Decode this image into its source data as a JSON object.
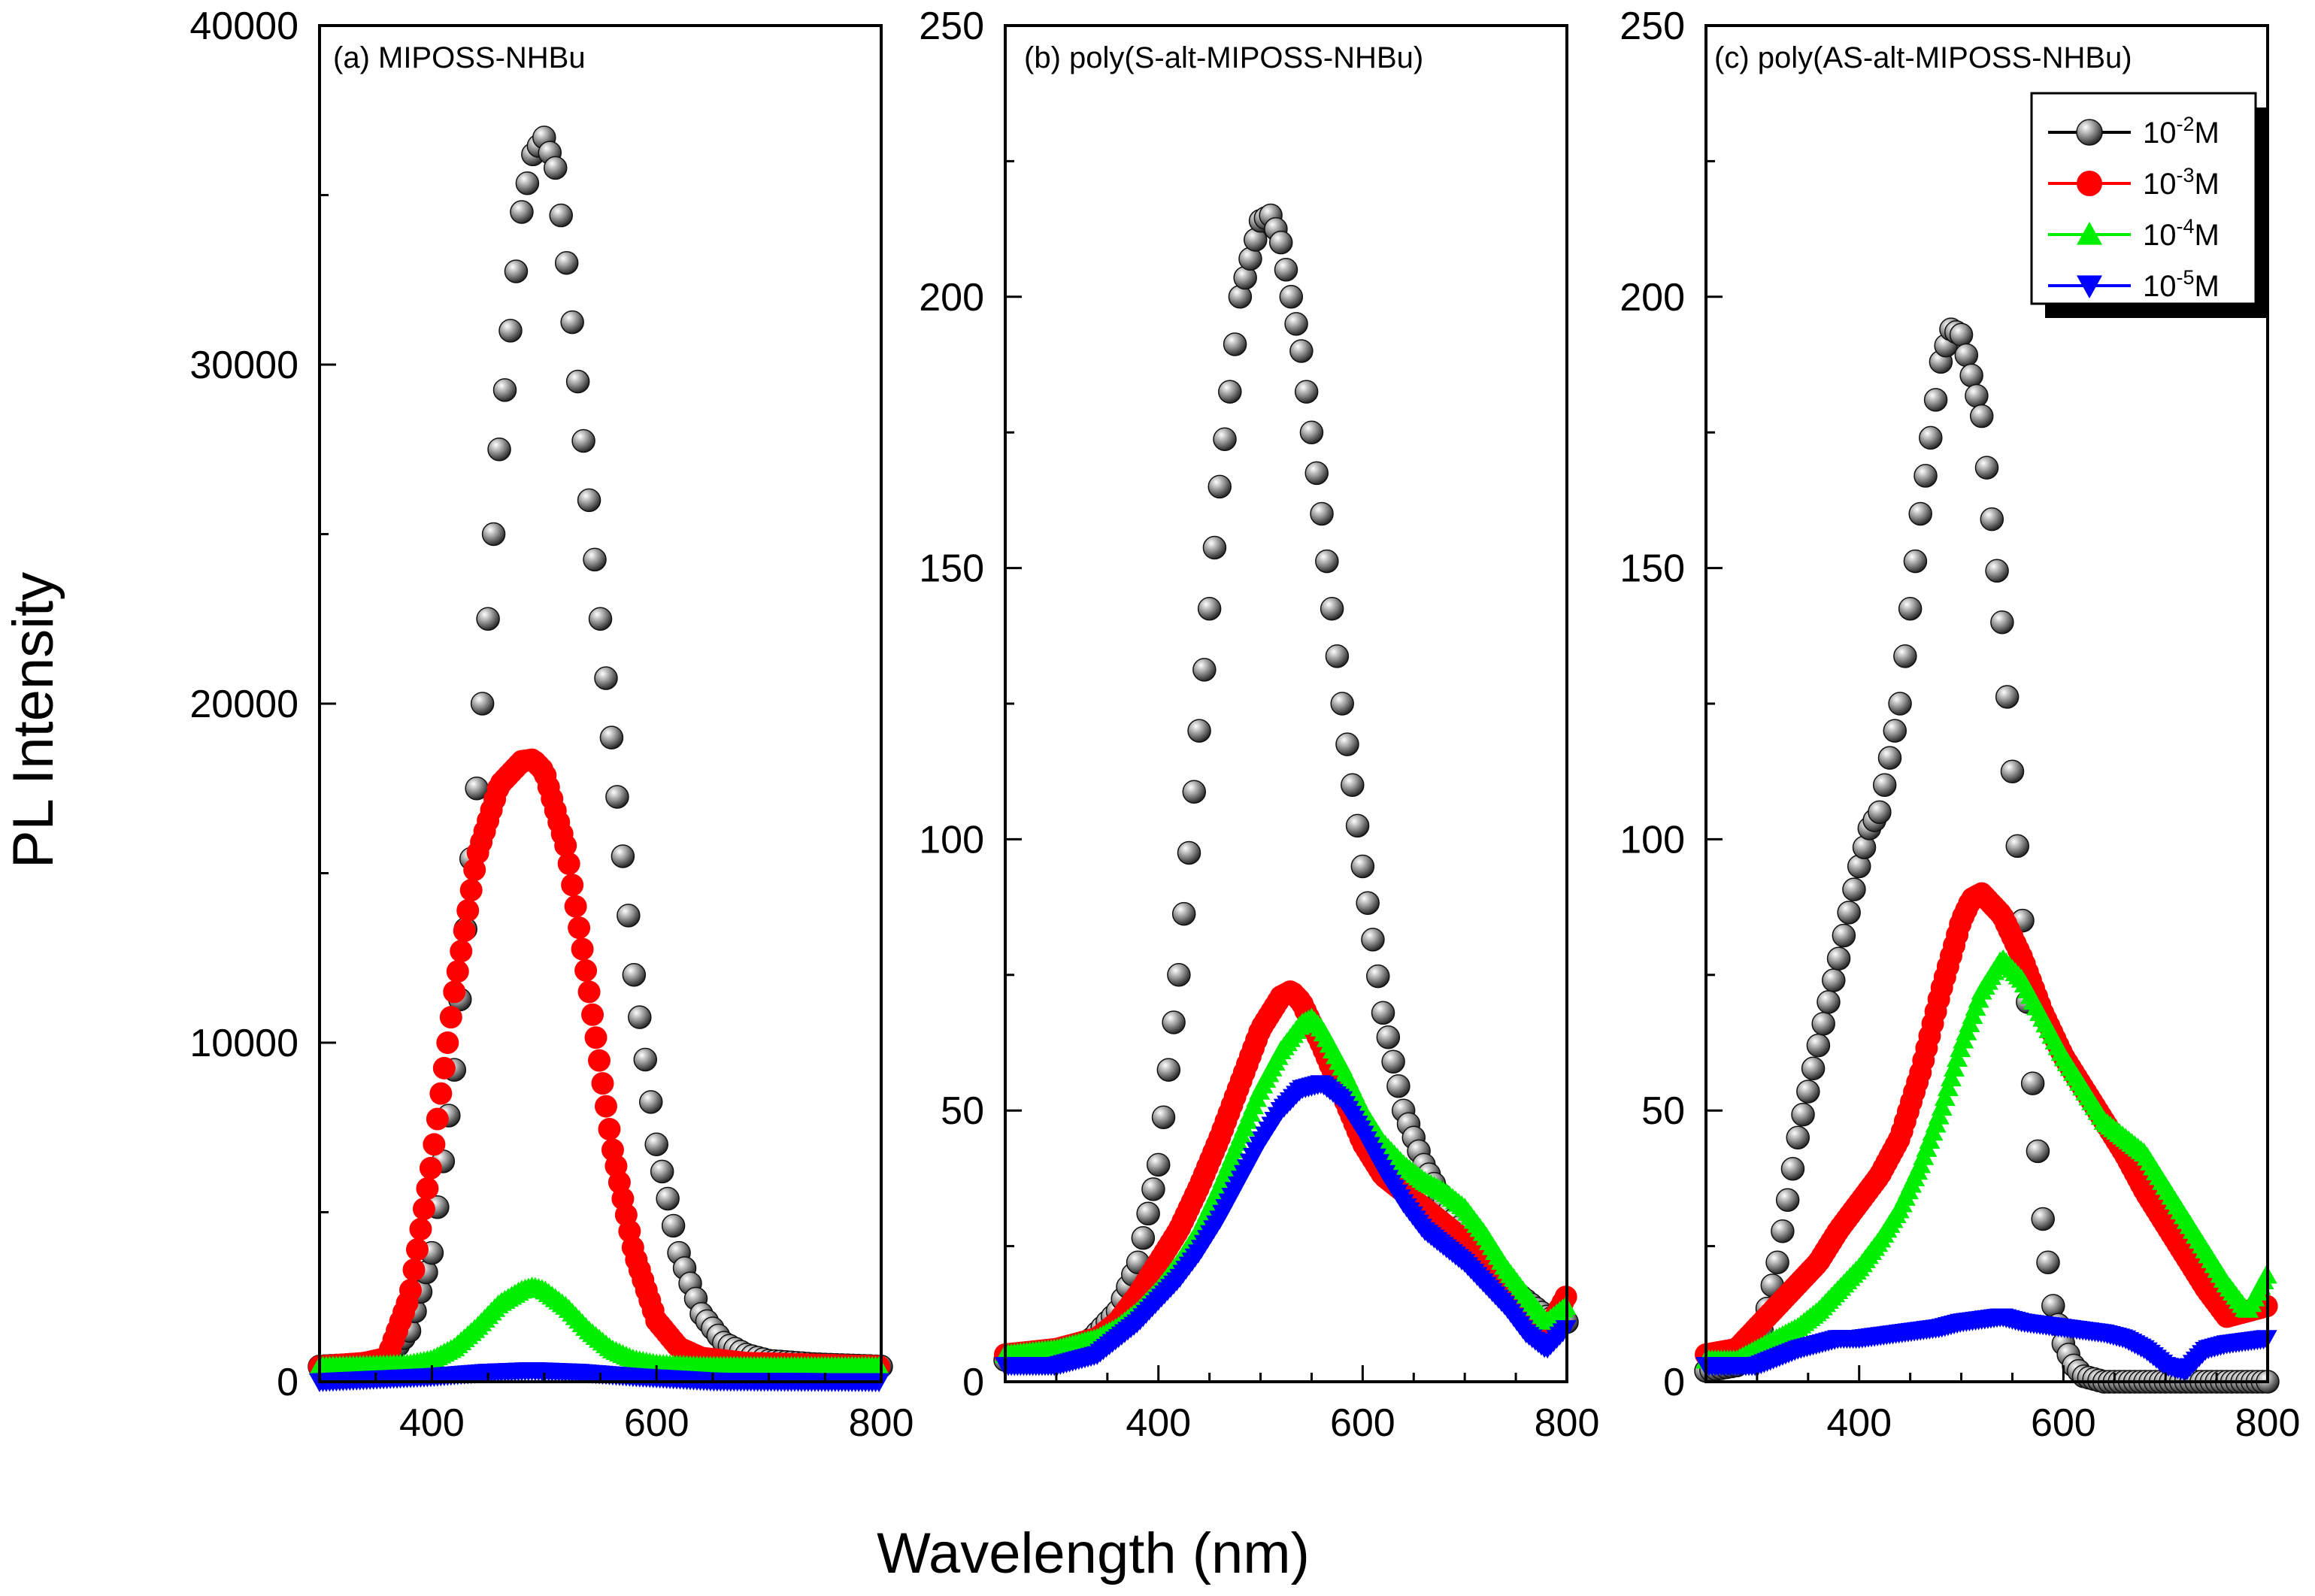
{
  "chart_data": [
    {
      "panel": "a",
      "type": "scatter",
      "title": "(a) MIPOSS-NHBu",
      "xlabel": "Wavelength (nm)",
      "ylabel": "PL Intensity",
      "xlim": [
        300,
        800
      ],
      "ylim": [
        0,
        40000
      ],
      "xticks": [
        400,
        600,
        800
      ],
      "yticks": [
        0,
        10000,
        20000,
        30000,
        40000
      ],
      "xtick_labels": [
        "400",
        "600",
        "800"
      ],
      "ytick_labels": [
        "0",
        "10000",
        "20000",
        "30000",
        "40000"
      ],
      "series": [
        {
          "name": "10^-2M",
          "color": "#000000",
          "marker": "sphere",
          "x": [
            300,
            340,
            360,
            380,
            400,
            420,
            440,
            460,
            480,
            490,
            500,
            510,
            520,
            540,
            560,
            580,
            600,
            620,
            640,
            660,
            680,
            700,
            740,
            800
          ],
          "y": [
            450,
            520,
            650,
            1500,
            3800,
            9200,
            17500,
            27500,
            34500,
            36200,
            36700,
            35800,
            33000,
            26000,
            19000,
            12000,
            7000,
            3800,
            2000,
            1150,
            800,
            620,
            520,
            450
          ]
        },
        {
          "name": "10^-3M",
          "color": "#ff0000",
          "marker": "circle",
          "x": [
            300,
            340,
            360,
            380,
            400,
            420,
            440,
            460,
            480,
            490,
            500,
            520,
            540,
            560,
            580,
            600,
            620,
            640,
            680,
            800
          ],
          "y": [
            450,
            550,
            700,
            2500,
            6500,
            11500,
            15500,
            17600,
            18300,
            18350,
            18000,
            15700,
            11500,
            7000,
            3800,
            1800,
            1000,
            700,
            550,
            450
          ]
        },
        {
          "name": "10^-4M",
          "color": "#00ee00",
          "marker": "triangle-up",
          "x": [
            300,
            340,
            380,
            400,
            420,
            440,
            460,
            480,
            490,
            500,
            520,
            540,
            560,
            580,
            600,
            640,
            700,
            800
          ],
          "y": [
            450,
            480,
            520,
            650,
            1000,
            1600,
            2300,
            2700,
            2800,
            2700,
            2200,
            1500,
            950,
            650,
            520,
            460,
            450,
            450
          ]
        },
        {
          "name": "10^-5M",
          "color": "#0000ff",
          "marker": "triangle-down",
          "x": [
            300,
            400,
            450,
            490,
            530,
            580,
            650,
            800
          ],
          "y": [
            0,
            150,
            280,
            330,
            280,
            150,
            20,
            0
          ]
        }
      ]
    },
    {
      "panel": "b",
      "type": "scatter",
      "title": "(b) poly(S-alt-MIPOSS-NHBu)",
      "xlabel": "Wavelength (nm)",
      "xlim": [
        250,
        800
      ],
      "ylim": [
        0,
        250
      ],
      "xticks": [
        400,
        600,
        800
      ],
      "yticks": [
        0,
        50,
        100,
        150,
        200,
        250
      ],
      "xtick_labels": [
        "400",
        "600",
        "800"
      ],
      "ytick_labels": [
        "0",
        "50",
        "100",
        "150",
        "200",
        "250"
      ],
      "series": [
        {
          "name": "10^-2M",
          "color": "#000000",
          "marker": "sphere",
          "x": [
            250,
            300,
            330,
            360,
            380,
            400,
            420,
            440,
            460,
            480,
            500,
            510,
            520,
            540,
            560,
            580,
            600,
            620,
            640,
            660,
            680,
            700,
            720,
            740,
            760,
            780,
            800
          ],
          "y": [
            4,
            5,
            7,
            13,
            22,
            40,
            75,
            120,
            165,
            200,
            214,
            215,
            210,
            190,
            160,
            125,
            95,
            68,
            50,
            40,
            33,
            27,
            22,
            18,
            15,
            12,
            11
          ]
        },
        {
          "name": "10^-3M",
          "color": "#ff0000",
          "marker": "circle",
          "x": [
            250,
            300,
            340,
            360,
            380,
            400,
            420,
            440,
            460,
            480,
            500,
            520,
            530,
            540,
            560,
            580,
            600,
            620,
            640,
            660,
            680,
            700,
            720,
            740,
            760,
            780,
            800
          ],
          "y": [
            5,
            6,
            8,
            11,
            16,
            22,
            28,
            36,
            45,
            55,
            65,
            71,
            72,
            70,
            62,
            53,
            44,
            38,
            35,
            32,
            29,
            26,
            22,
            17,
            12,
            9,
            16
          ]
        },
        {
          "name": "10^-4M",
          "color": "#00ee00",
          "marker": "triangle-up",
          "x": [
            250,
            300,
            340,
            360,
            380,
            400,
            420,
            440,
            460,
            480,
            500,
            520,
            540,
            550,
            560,
            580,
            600,
            620,
            640,
            660,
            680,
            700,
            720,
            740,
            760,
            780,
            800
          ],
          "y": [
            5,
            6,
            8,
            10,
            13,
            17,
            22,
            28,
            36,
            45,
            54,
            61,
            66,
            67,
            65,
            58,
            50,
            44,
            40,
            37,
            35,
            32,
            27,
            21,
            16,
            11,
            14
          ]
        },
        {
          "name": "10^-5M",
          "color": "#0000ff",
          "marker": "triangle-down",
          "x": [
            250,
            300,
            340,
            360,
            380,
            400,
            420,
            440,
            460,
            480,
            500,
            520,
            540,
            560,
            580,
            600,
            620,
            640,
            660,
            680,
            700,
            720,
            740,
            760,
            780,
            800
          ],
          "y": [
            3,
            3,
            5,
            8,
            11,
            15,
            19,
            24,
            30,
            37,
            44,
            50,
            54,
            55,
            52,
            46,
            39,
            33,
            28,
            25,
            22,
            18,
            14,
            9,
            6,
            10
          ]
        }
      ]
    },
    {
      "panel": "c",
      "type": "scatter",
      "title": "(c) poly(AS-alt-MIPOSS-NHBu)",
      "xlabel": "Wavelength (nm)",
      "xlim": [
        250,
        800
      ],
      "ylim": [
        0,
        250
      ],
      "xticks": [
        400,
        600,
        800
      ],
      "yticks": [
        0,
        50,
        100,
        150,
        200,
        250
      ],
      "xtick_labels": [
        "400",
        "600",
        "800"
      ],
      "ytick_labels": [
        "0",
        "50",
        "100",
        "150",
        "200",
        "250"
      ],
      "series": [
        {
          "name": "10^-2M",
          "color": "#000000",
          "marker": "sphere",
          "x": [
            250,
            280,
            300,
            320,
            340,
            360,
            380,
            400,
            410,
            420,
            440,
            460,
            480,
            490,
            500,
            520,
            540,
            560,
            570,
            580,
            590,
            600,
            610,
            620,
            640,
            700,
            800
          ],
          "y": [
            2,
            3,
            5,
            22,
            45,
            62,
            78,
            95,
            102,
            105,
            125,
            160,
            188,
            194,
            193,
            178,
            140,
            85,
            55,
            30,
            14,
            7,
            3,
            1,
            0,
            0,
            0
          ]
        },
        {
          "name": "10^-3M",
          "color": "#ff0000",
          "marker": "circle",
          "x": [
            250,
            280,
            300,
            320,
            340,
            360,
            380,
            400,
            420,
            440,
            460,
            480,
            500,
            510,
            520,
            540,
            560,
            580,
            600,
            620,
            640,
            660,
            680,
            700,
            720,
            740,
            760,
            800
          ],
          "y": [
            5,
            6,
            10,
            14,
            18,
            22,
            28,
            33,
            38,
            45,
            57,
            72,
            85,
            89,
            90,
            86,
            78,
            68,
            60,
            54,
            48,
            42,
            35,
            29,
            23,
            17,
            12,
            14
          ]
        },
        {
          "name": "10^-4M",
          "color": "#00ee00",
          "marker": "triangle-up",
          "x": [
            250,
            280,
            300,
            320,
            340,
            360,
            380,
            400,
            420,
            440,
            460,
            480,
            500,
            520,
            540,
            560,
            580,
            600,
            620,
            640,
            660,
            680,
            700,
            720,
            740,
            760,
            780,
            800
          ],
          "y": [
            4,
            4,
            6,
            8,
            10,
            13,
            17,
            21,
            26,
            32,
            40,
            50,
            62,
            72,
            78,
            74,
            67,
            60,
            54,
            48,
            45,
            42,
            36,
            30,
            24,
            18,
            13,
            20
          ]
        },
        {
          "name": "10^-5M",
          "color": "#0000ff",
          "marker": "triangle-down",
          "x": [
            250,
            300,
            340,
            360,
            380,
            400,
            440,
            480,
            500,
            540,
            560,
            600,
            640,
            660,
            680,
            700,
            720,
            740,
            760,
            800
          ],
          "y": [
            3,
            3,
            6,
            7,
            8,
            8,
            9,
            10,
            11,
            12,
            11,
            10,
            9,
            8,
            6,
            3,
            2,
            6,
            7,
            8
          ]
        }
      ]
    }
  ],
  "legend": {
    "entries": [
      {
        "base": "10",
        "exponent": "-2",
        "unit": "M",
        "color": "#000000",
        "marker": "sphere"
      },
      {
        "base": "10",
        "exponent": "-3",
        "unit": "M",
        "color": "#ff0000",
        "marker": "circle"
      },
      {
        "base": "10",
        "exponent": "-4",
        "unit": "M",
        "color": "#00ee00",
        "marker": "triangle-up"
      },
      {
        "base": "10",
        "exponent": "-5",
        "unit": "M",
        "color": "#0000ff",
        "marker": "triangle-down"
      }
    ],
    "placement": "top-right of panel (c)"
  },
  "ylabel": "PL Intensity",
  "xlabel": "Wavelength (nm)"
}
